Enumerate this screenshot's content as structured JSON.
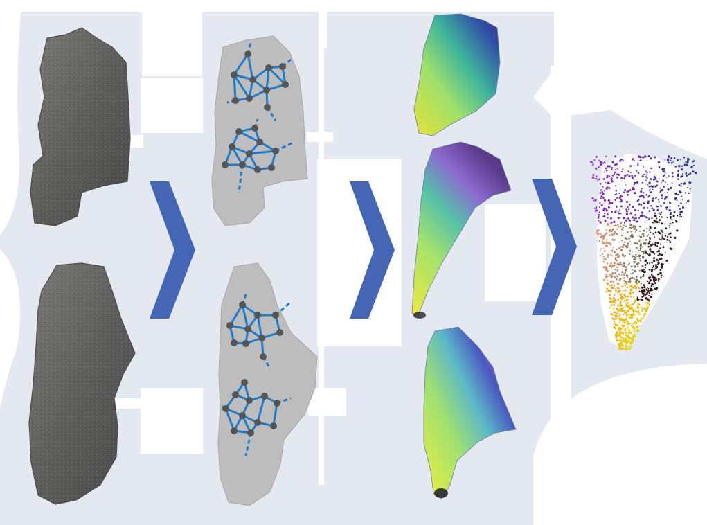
{
  "figure": {
    "stages": [
      {
        "id": "raw-fragments",
        "label": ""
      },
      {
        "id": "graph-encoding",
        "label": ""
      },
      {
        "id": "colored-embedding",
        "label": ""
      },
      {
        "id": "point-cloud",
        "label": ""
      }
    ],
    "arrows": [
      "arrow-1",
      "arrow-2",
      "arrow-3"
    ],
    "colors": {
      "background": "#e4e8f0",
      "arrow": "#4466b4",
      "raw_surface": "#6d6d6b",
      "graph_surface": "#b8b8b8",
      "graph_edge": "#1f7ccc",
      "graph_node": "#555555"
    }
  }
}
